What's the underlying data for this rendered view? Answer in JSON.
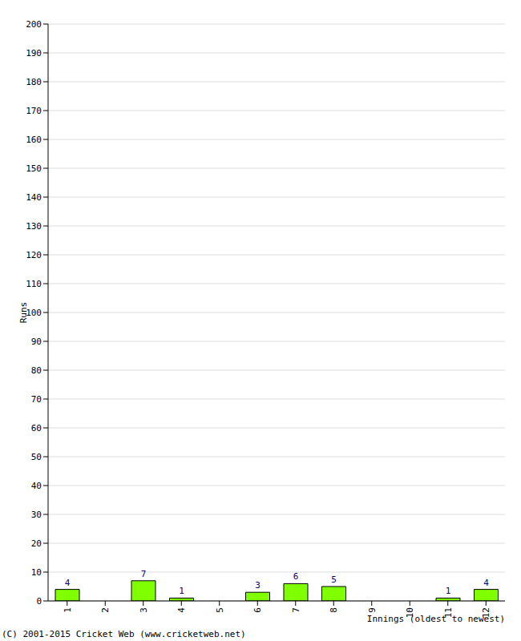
{
  "chart_data": {
    "type": "bar",
    "categories": [
      "1",
      "2",
      "3",
      "4",
      "5",
      "6",
      "7",
      "8",
      "9",
      "10",
      "11",
      "12"
    ],
    "values": [
      4,
      0,
      7,
      1,
      0,
      3,
      6,
      5,
      0,
      0,
      1,
      4
    ],
    "color": "#80ff00",
    "ylim": [
      0,
      200
    ],
    "yticks": [
      0,
      10,
      20,
      30,
      40,
      50,
      60,
      70,
      80,
      90,
      100,
      110,
      120,
      130,
      140,
      150,
      160,
      170,
      180,
      190,
      200
    ],
    "grid": true,
    "data_labels": true,
    "y_label": "Runs",
    "x_label": "Innings (oldest to newest)",
    "annotations": [
      "(C) 2001-2015 Cricket Web (www.cricketweb.net)"
    ]
  }
}
